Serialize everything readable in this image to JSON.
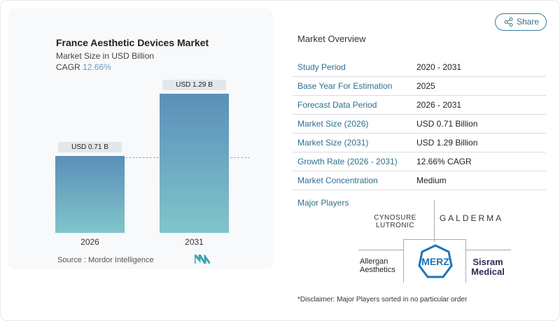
{
  "chart_card": {
    "title": "France Aesthetic Devices Market",
    "subtitle": "Market Size in USD Billion",
    "cagr_label": "CAGR",
    "cagr_value": "12.66%",
    "source": "Source :  Mordor Intelligence"
  },
  "chart_data": {
    "type": "bar",
    "categories": [
      "2026",
      "2031"
    ],
    "values": [
      0.71,
      1.29
    ],
    "data_labels": [
      "USD 0.71 B",
      "USD 1.29 B"
    ],
    "title": "France Aesthetic Devices Market",
    "ylabel": "Market Size in USD Billion",
    "colors": {
      "top": "#5b8fb9",
      "bottom": "#80c5ca"
    }
  },
  "share_button": {
    "label": "Share",
    "icon": "share-icon"
  },
  "overview": {
    "title": "Market Overview",
    "rows": [
      {
        "label": "Study Period",
        "value": "2020 - 2031"
      },
      {
        "label": "Base Year For Estimation",
        "value": "2025"
      },
      {
        "label": "Forecast Data Period",
        "value": "2026 - 2031"
      },
      {
        "label": "Market Size (2026)",
        "value": "USD 0.71 Billion"
      },
      {
        "label": "Market Size (2031)",
        "value": "USD 1.29 Billion"
      },
      {
        "label": "Growth Rate (2026 - 2031)",
        "value": "12.66% CAGR"
      },
      {
        "label": "Market Concentration",
        "value": "Medium"
      }
    ],
    "major_players_label": "Major Players",
    "logos": [
      "CYNOSURE LUTRONIC",
      "GALDERMA",
      "Allergan Aesthetics",
      "MERZ",
      "Sisram Medical"
    ],
    "disclaimer": "*Disclaimer: Major Players sorted in no particular order"
  }
}
